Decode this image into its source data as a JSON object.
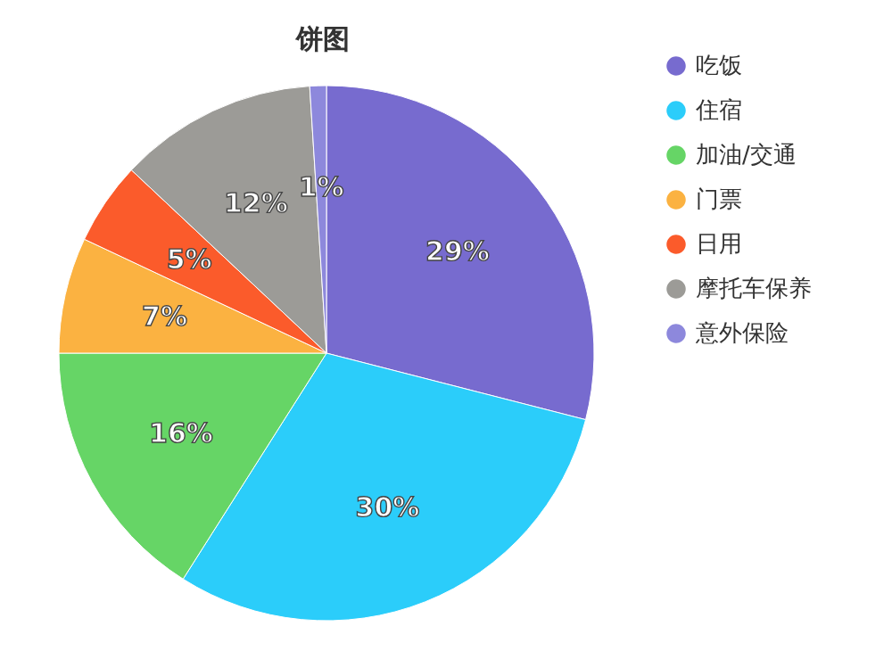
{
  "chart_data": {
    "type": "pie",
    "title": "饼图",
    "categories": [
      "吃饭",
      "住宿",
      "加油/交通",
      "门票",
      "日用",
      "摩托车保养",
      "意外保险"
    ],
    "values": [
      29,
      30,
      16,
      7,
      5,
      12,
      1
    ],
    "value_labels": [
      "29%",
      "30%",
      "16%",
      "7%",
      "5%",
      "12%",
      "1%"
    ],
    "colors": [
      "#776bcf",
      "#2bcdfa",
      "#66d566",
      "#fbb241",
      "#fb5b2b",
      "#9c9b97",
      "#8d88dc"
    ],
    "legend": "top right"
  }
}
